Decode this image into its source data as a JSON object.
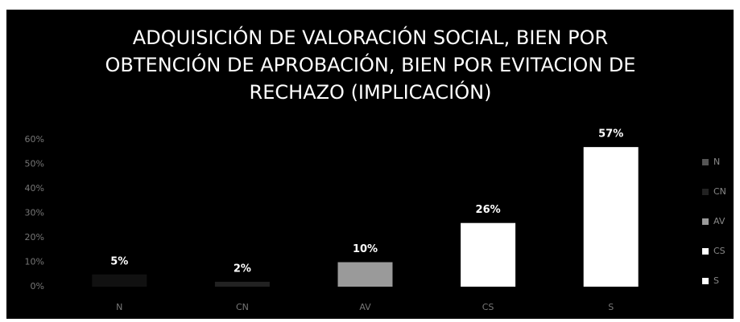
{
  "chart_data": {
    "type": "bar",
    "title": "ADQUISICIÓN DE VALORACIÓN SOCIAL, BIEN POR OBTENCIÓN DE APROBACIÓN, BIEN POR EVITACION DE RECHAZO (IMPLICACIÓN)",
    "categories": [
      "N",
      "CN",
      "AV",
      "CS",
      "S"
    ],
    "values": [
      5,
      2,
      10,
      26,
      57
    ],
    "value_labels": [
      "5%",
      "2%",
      "10%",
      "26%",
      "57%"
    ],
    "colors": [
      "#111111",
      "#222222",
      "#9a9a9a",
      "#ffffff",
      "#ffffff"
    ],
    "ylim": [
      0,
      60
    ],
    "yticks": [
      {
        "value": 0,
        "label": "0%"
      },
      {
        "value": 10,
        "label": "10%"
      },
      {
        "value": 20,
        "label": "20%"
      },
      {
        "value": 30,
        "label": "30%"
      },
      {
        "value": 40,
        "label": "40%"
      },
      {
        "value": 50,
        "label": "50%"
      },
      {
        "value": 60,
        "label": "60%"
      }
    ],
    "grid": false,
    "legend": "right"
  }
}
